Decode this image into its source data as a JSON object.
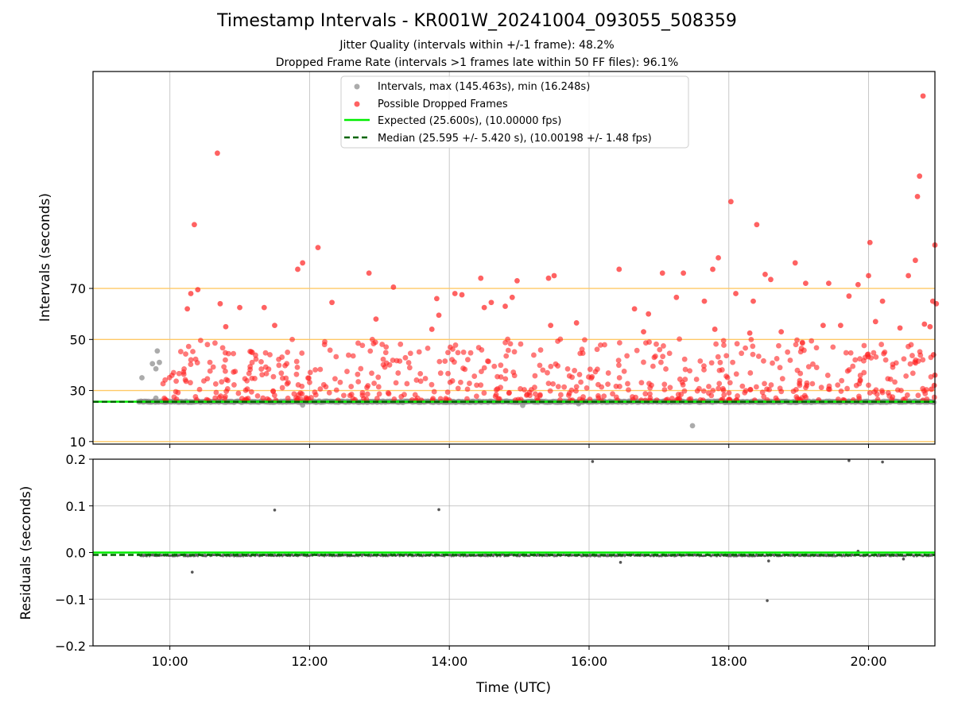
{
  "chart_data": [
    {
      "type": "scatter",
      "title": "Timestamp Intervals - KR001W_20241004_093055_508359",
      "subtitle_lines": [
        "Jitter Quality (intervals within +/-1 frame): 48.2%",
        "Dropped Frame Rate (intervals >1 frames late within 50 FF files): 96.1%"
      ],
      "xlabel": "",
      "ylabel": "Intervals (seconds)",
      "xlim_hours": [
        8.9,
        20.95
      ],
      "ylim": [
        9,
        155
      ],
      "yticks": [
        10,
        30,
        50,
        70
      ],
      "xticks_hours": [
        10,
        12,
        14,
        16,
        18,
        20
      ],
      "grid": true,
      "legend_position": "top-center",
      "legend": [
        "Intervals, max (145.463s), min (16.248s)",
        "Possible Dropped Frames",
        "Expected (25.600s), (10.00000 fps)",
        "Median (25.595 +/- 5.420 s), (10.00198 +/- 1.48 fps)"
      ],
      "expected_value": 25.6,
      "median_value": 25.595,
      "threshold_lines": [
        10,
        30,
        50,
        70
      ],
      "series": [
        {
          "name": "Intervals, max (145.463s), min (16.248s)",
          "color": "#888888",
          "note_values": "baseline intervals clustered at about 25.6 s",
          "points": [
            [
              9.6,
              35.0
            ],
            [
              9.75,
              40.5
            ],
            [
              9.8,
              38.5
            ],
            [
              9.82,
              45.5
            ],
            [
              9.85,
              41.0
            ],
            [
              9.8,
              27.0
            ],
            [
              11.9,
              24.3
            ],
            [
              15.05,
              24.2
            ],
            [
              15.85,
              24.8
            ],
            [
              17.48,
              16.2
            ]
          ]
        },
        {
          "name": "Possible Dropped Frames",
          "color": "#ff2020",
          "points": [
            [
              10.68,
              123.0
            ],
            [
              10.35,
              95.0
            ],
            [
              12.12,
              86.0
            ],
            [
              11.9,
              80.0
            ],
            [
              11.83,
              77.5
            ],
            [
              10.4,
              69.5
            ],
            [
              10.3,
              68.0
            ],
            [
              10.72,
              64.0
            ],
            [
              10.25,
              62.0
            ],
            [
              11.0,
              62.5
            ],
            [
              12.32,
              64.5
            ],
            [
              12.85,
              76.0
            ],
            [
              13.2,
              70.5
            ],
            [
              13.82,
              66.0
            ],
            [
              14.45,
              74.0
            ],
            [
              14.97,
              73.0
            ],
            [
              15.42,
              74.0
            ],
            [
              15.5,
              75.0
            ],
            [
              16.43,
              77.5
            ],
            [
              17.05,
              76.0
            ],
            [
              17.35,
              76.0
            ],
            [
              17.77,
              77.5
            ],
            [
              17.85,
              82.0
            ],
            [
              18.03,
              104.0
            ],
            [
              18.4,
              95.0
            ],
            [
              18.52,
              75.5
            ],
            [
              18.6,
              73.5
            ],
            [
              18.95,
              80.0
            ],
            [
              19.1,
              72.0
            ],
            [
              19.43,
              72.0
            ],
            [
              19.72,
              67.0
            ],
            [
              19.85,
              71.5
            ],
            [
              20.0,
              75.0
            ],
            [
              20.02,
              88.0
            ],
            [
              20.57,
              75.0
            ],
            [
              20.67,
              81.0
            ],
            [
              20.7,
              106.0
            ],
            [
              20.73,
              114.0
            ],
            [
              20.78,
              145.4
            ],
            [
              20.95,
              87.0
            ],
            [
              20.92,
              65.0
            ],
            [
              20.97,
              64.0
            ],
            [
              20.88,
              55.0
            ],
            [
              20.8,
              56.0
            ],
            [
              20.93,
              44.0
            ],
            [
              20.94,
              32.0
            ],
            [
              20.9,
              30.5
            ],
            [
              20.95,
              36.0
            ],
            [
              18.1,
              68.0
            ],
            [
              18.35,
              65.0
            ],
            [
              16.65,
              62.0
            ],
            [
              16.85,
              60.0
            ],
            [
              17.25,
              66.5
            ],
            [
              17.65,
              65.0
            ],
            [
              14.5,
              62.5
            ],
            [
              14.6,
              64.5
            ],
            [
              14.9,
              66.5
            ],
            [
              14.8,
              63.0
            ],
            [
              13.85,
              59.5
            ],
            [
              14.08,
              68.0
            ],
            [
              14.18,
              67.5
            ],
            [
              11.35,
              62.5
            ],
            [
              11.5,
              55.5
            ],
            [
              10.8,
              55.0
            ],
            [
              12.95,
              58.0
            ],
            [
              13.75,
              54.0
            ],
            [
              15.45,
              55.5
            ],
            [
              15.82,
              56.5
            ],
            [
              16.78,
              53.0
            ],
            [
              17.8,
              54.0
            ],
            [
              18.3,
              52.5
            ],
            [
              18.75,
              53.0
            ],
            [
              19.35,
              55.5
            ],
            [
              19.6,
              55.5
            ],
            [
              20.1,
              57.0
            ],
            [
              20.2,
              65.0
            ],
            [
              20.45,
              54.5
            ]
          ],
          "note_values": "dense band of dropped-frame intervals between about 26 and 50 s across the whole time range"
        }
      ]
    },
    {
      "type": "scatter",
      "title": "",
      "xlabel": "Time (UTC)",
      "ylabel": "Residuals (seconds)",
      "xlim_hours": [
        8.9,
        20.95
      ],
      "ylim": [
        -0.2,
        0.2
      ],
      "yticks": [
        -0.2,
        -0.1,
        0.0,
        0.1,
        0.2
      ],
      "xticks_hours": [
        10,
        12,
        14,
        16,
        18,
        20
      ],
      "grid": true,
      "expected_value": 0.0,
      "median_value": -0.005,
      "series": [
        {
          "name": "",
          "color": "#555555",
          "points": [
            [
              10.32,
              -0.042
            ],
            [
              11.5,
              0.091
            ],
            [
              13.85,
              0.092
            ],
            [
              16.05,
              0.195
            ],
            [
              16.45,
              -0.021
            ],
            [
              18.55,
              -0.103
            ],
            [
              18.57,
              -0.018
            ],
            [
              19.72,
              0.197
            ],
            [
              19.85,
              0.003
            ],
            [
              20.2,
              0.194
            ],
            [
              20.5,
              -0.014
            ]
          ],
          "note_values": "most residuals clustered at about -0.006 s"
        }
      ]
    }
  ],
  "axis_text": {
    "xtick_labels": [
      "10:00",
      "12:00",
      "14:00",
      "16:00",
      "18:00",
      "20:00"
    ],
    "top_ytick_labels": [
      "10",
      "30",
      "50",
      "70"
    ],
    "bottom_ytick_labels": [
      "−0.2",
      "−0.1",
      "0.0",
      "0.1",
      "0.2"
    ]
  },
  "colors": {
    "intervals": "#888888",
    "dropped": "#ff2020",
    "expected": "#00ee00",
    "median": "#006400",
    "threshold": "#ffc966",
    "residuals": "#555555"
  }
}
